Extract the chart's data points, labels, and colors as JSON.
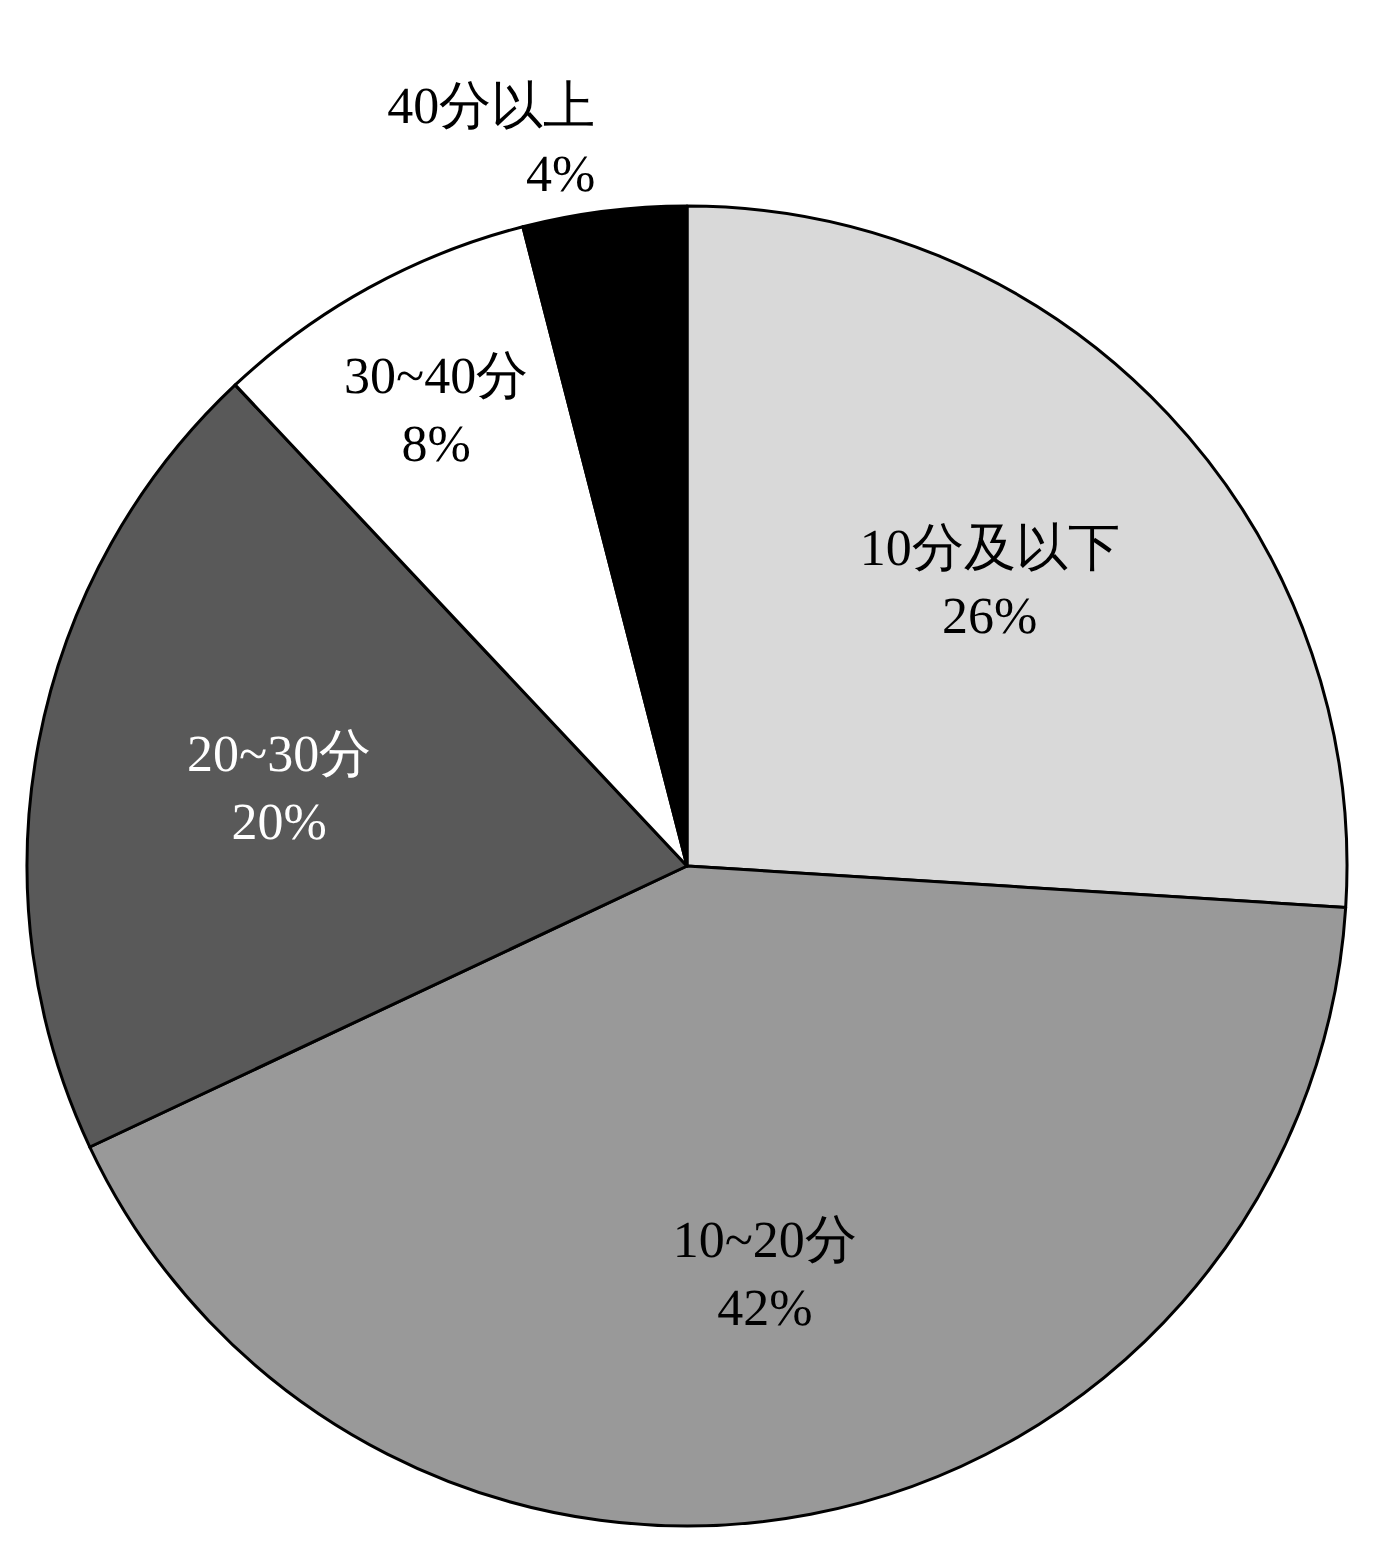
{
  "chart_data": {
    "type": "pie",
    "categories": [
      "10分及以下",
      "10~20分",
      "20~30分",
      "30~40分",
      "40分以上"
    ],
    "values": [
      26,
      42,
      20,
      8,
      4
    ],
    "value_labels": [
      "26%",
      "42%",
      "20%",
      "8%",
      "4%"
    ],
    "colors": [
      "#d9d9d9",
      "#999999",
      "#595959",
      "#ffffff",
      "#000000"
    ],
    "legend": false
  }
}
